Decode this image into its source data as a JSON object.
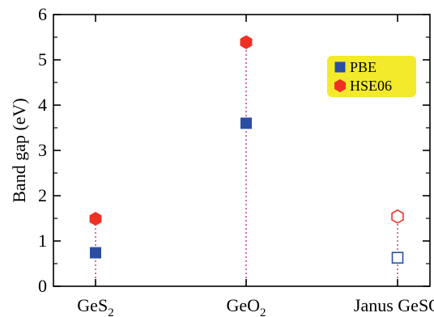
{
  "chart_data": {
    "type": "scatter",
    "ylabel": "Band gap (eV)",
    "ylim": [
      0,
      6
    ],
    "yticks": [
      "0",
      "1",
      "2",
      "3",
      "4",
      "5",
      "6"
    ],
    "categories": [
      {
        "base": "GeS",
        "sub": "2"
      },
      {
        "base": "GeO",
        "sub": "2"
      },
      {
        "base": "Janus GeSO",
        "sub": ""
      }
    ],
    "series": [
      {
        "name": "PBE",
        "marker": "square",
        "color": "#2b4ea2",
        "values": [
          0.74,
          3.6,
          0.63
        ],
        "hollow": [
          false,
          false,
          true
        ]
      },
      {
        "name": "HSE06",
        "marker": "hexagon",
        "color": "#ee3124",
        "values": [
          1.49,
          5.39,
          1.54
        ],
        "hollow": [
          false,
          false,
          true
        ]
      }
    ],
    "legend": {
      "position": "top-right",
      "background": "#f3ea2b"
    },
    "guide_line_color": "#c0358f",
    "grid": false
  }
}
